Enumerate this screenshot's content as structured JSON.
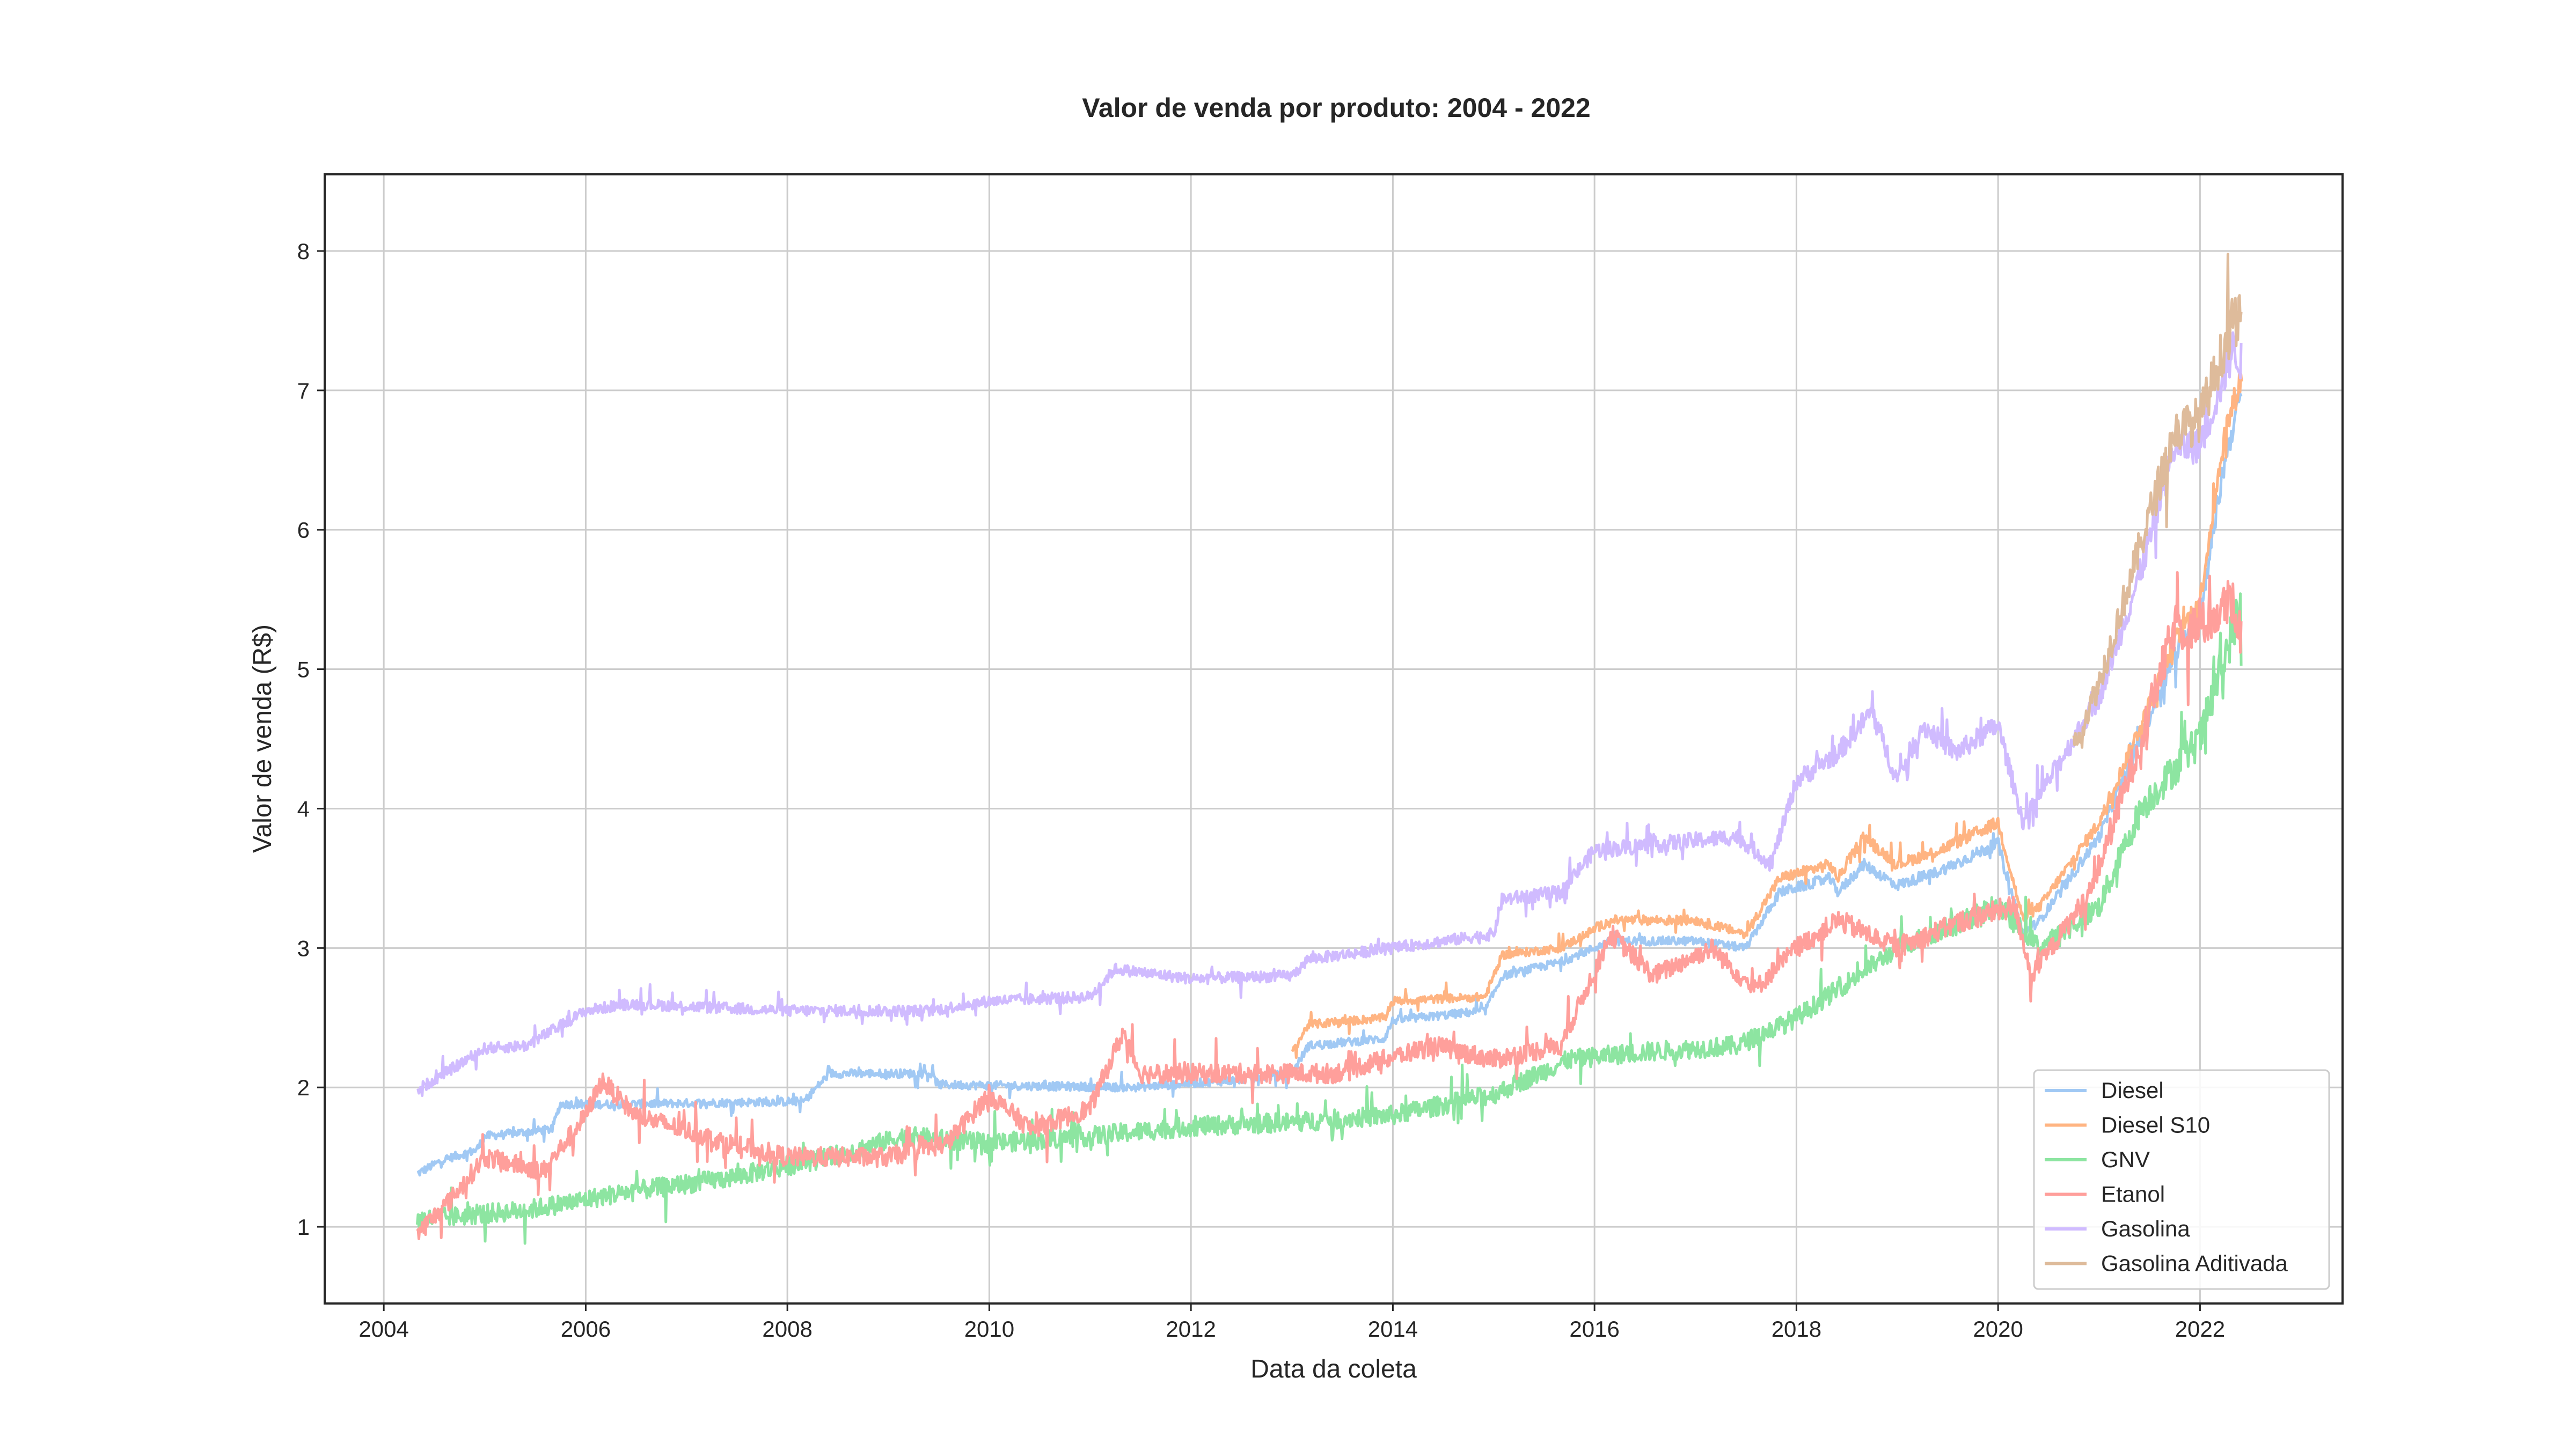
{
  "chart_data": {
    "type": "line",
    "title": "Valor de venda por produto: 2004 - 2022",
    "xlabel": "Data da coleta",
    "ylabel": "Valor de venda (R$)",
    "x_ticks": [
      "2004",
      "2006",
      "2008",
      "2010",
      "2012",
      "2014",
      "2016",
      "2018",
      "2020",
      "2022"
    ],
    "y_ticks": [
      "1",
      "2",
      "3",
      "4",
      "5",
      "6",
      "7",
      "8"
    ],
    "xlim": [
      "2003-06-01",
      "2023-06-01"
    ],
    "ylim": [
      0.45,
      8.55
    ],
    "grid": true,
    "legend_position": "lower right",
    "series": [
      {
        "name": "Diesel",
        "color": "#a1c9f4",
        "noise": 0.03,
        "points": [
          [
            "2004-05-01",
            1.38
          ],
          [
            "2004-08-01",
            1.48
          ],
          [
            "2004-12-01",
            1.55
          ],
          [
            "2005-01-01",
            1.65
          ],
          [
            "2005-09-01",
            1.7
          ],
          [
            "2005-10-01",
            1.88
          ],
          [
            "2006-06-01",
            1.88
          ],
          [
            "2008-03-01",
            1.9
          ],
          [
            "2008-06-01",
            2.1
          ],
          [
            "2009-06-01",
            2.1
          ],
          [
            "2009-07-01",
            2.02
          ],
          [
            "2011-06-01",
            2.0
          ],
          [
            "2012-06-01",
            2.05
          ],
          [
            "2013-01-01",
            2.1
          ],
          [
            "2013-03-01",
            2.3
          ],
          [
            "2013-12-01",
            2.35
          ],
          [
            "2014-01-01",
            2.48
          ],
          [
            "2014-12-01",
            2.55
          ],
          [
            "2015-02-01",
            2.8
          ],
          [
            "2015-09-01",
            2.9
          ],
          [
            "2016-03-01",
            3.05
          ],
          [
            "2017-01-01",
            3.05
          ],
          [
            "2017-07-01",
            3.0
          ],
          [
            "2017-11-01",
            3.4
          ],
          [
            "2018-05-01",
            3.5
          ],
          [
            "2018-06-01",
            3.4
          ],
          [
            "2018-09-01",
            3.6
          ],
          [
            "2019-01-01",
            3.45
          ],
          [
            "2019-06-01",
            3.55
          ],
          [
            "2020-01-01",
            3.75
          ],
          [
            "2020-04-01",
            3.1
          ],
          [
            "2020-06-01",
            3.2
          ],
          [
            "2021-01-01",
            3.8
          ],
          [
            "2021-06-01",
            4.5
          ],
          [
            "2021-10-01",
            5.1
          ],
          [
            "2022-01-01",
            5.4
          ],
          [
            "2022-04-01",
            6.5
          ],
          [
            "2022-06-01",
            7.0
          ]
        ]
      },
      {
        "name": "Diesel S10",
        "color": "#ffb482",
        "noise": 0.03,
        "points": [
          [
            "2013-01-01",
            2.25
          ],
          [
            "2013-03-01",
            2.45
          ],
          [
            "2013-12-01",
            2.5
          ],
          [
            "2014-01-01",
            2.62
          ],
          [
            "2014-12-01",
            2.65
          ],
          [
            "2015-02-01",
            2.95
          ],
          [
            "2015-09-01",
            3.0
          ],
          [
            "2016-03-01",
            3.2
          ],
          [
            "2017-01-01",
            3.2
          ],
          [
            "2017-07-01",
            3.1
          ],
          [
            "2017-11-01",
            3.5
          ],
          [
            "2018-05-01",
            3.6
          ],
          [
            "2018-06-01",
            3.5
          ],
          [
            "2018-09-01",
            3.8
          ],
          [
            "2019-01-01",
            3.6
          ],
          [
            "2019-06-01",
            3.7
          ],
          [
            "2020-01-01",
            3.9
          ],
          [
            "2020-04-01",
            3.2
          ],
          [
            "2020-06-01",
            3.3
          ],
          [
            "2021-01-01",
            3.9
          ],
          [
            "2021-06-01",
            4.6
          ],
          [
            "2021-10-01",
            5.2
          ],
          [
            "2022-01-01",
            5.5
          ],
          [
            "2022-04-01",
            6.7
          ],
          [
            "2022-06-01",
            7.1
          ]
        ]
      },
      {
        "name": "GNV",
        "color": "#8de5a1",
        "noise": 0.07,
        "points": [
          [
            "2004-05-01",
            1.05
          ],
          [
            "2005-06-01",
            1.12
          ],
          [
            "2006-06-01",
            1.25
          ],
          [
            "2007-06-01",
            1.35
          ],
          [
            "2008-06-01",
            1.5
          ],
          [
            "2009-03-01",
            1.65
          ],
          [
            "2010-01-01",
            1.6
          ],
          [
            "2011-01-01",
            1.65
          ],
          [
            "2012-01-01",
            1.72
          ],
          [
            "2013-01-01",
            1.75
          ],
          [
            "2014-01-01",
            1.8
          ],
          [
            "2015-01-01",
            1.95
          ],
          [
            "2015-10-01",
            2.2
          ],
          [
            "2016-06-01",
            2.25
          ],
          [
            "2017-06-01",
            2.3
          ],
          [
            "2018-01-01",
            2.5
          ],
          [
            "2019-01-01",
            3.0
          ],
          [
            "2020-01-01",
            3.3
          ],
          [
            "2020-06-01",
            3.0
          ],
          [
            "2021-01-01",
            3.3
          ],
          [
            "2021-06-01",
            4.0
          ],
          [
            "2022-01-01",
            4.5
          ],
          [
            "2022-06-01",
            5.5
          ]
        ]
      },
      {
        "name": "Etanol",
        "color": "#ff9f9b",
        "noise": 0.07,
        "points": [
          [
            "2004-05-01",
            0.95
          ],
          [
            "2004-09-01",
            1.2
          ],
          [
            "2005-01-01",
            1.5
          ],
          [
            "2005-08-01",
            1.4
          ],
          [
            "2006-01-01",
            1.8
          ],
          [
            "2006-03-01",
            2.05
          ],
          [
            "2006-07-01",
            1.8
          ],
          [
            "2007-06-01",
            1.6
          ],
          [
            "2008-01-01",
            1.5
          ],
          [
            "2009-01-01",
            1.5
          ],
          [
            "2009-08-01",
            1.6
          ],
          [
            "2010-01-01",
            1.95
          ],
          [
            "2010-06-01",
            1.7
          ],
          [
            "2011-01-01",
            1.85
          ],
          [
            "2011-05-01",
            2.4
          ],
          [
            "2011-07-01",
            2.1
          ],
          [
            "2012-06-01",
            2.1
          ],
          [
            "2013-06-01",
            2.1
          ],
          [
            "2014-06-01",
            2.3
          ],
          [
            "2015-01-01",
            2.2
          ],
          [
            "2015-09-01",
            2.3
          ],
          [
            "2016-03-01",
            3.1
          ],
          [
            "2016-08-01",
            2.8
          ],
          [
            "2017-03-01",
            3.0
          ],
          [
            "2017-08-01",
            2.7
          ],
          [
            "2018-01-01",
            3.0
          ],
          [
            "2018-06-01",
            3.2
          ],
          [
            "2019-01-01",
            3.0
          ],
          [
            "2019-09-01",
            3.2
          ],
          [
            "2020-03-01",
            3.3
          ],
          [
            "2020-05-01",
            2.8
          ],
          [
            "2020-12-01",
            3.4
          ],
          [
            "2021-06-01",
            4.5
          ],
          [
            "2021-10-01",
            5.3
          ],
          [
            "2022-01-01",
            5.3
          ],
          [
            "2022-05-01",
            5.5
          ],
          [
            "2022-06-01",
            5.2
          ]
        ]
      },
      {
        "name": "Gasolina",
        "color": "#d0bbff",
        "noise": 0.04,
        "points": [
          [
            "2004-05-01",
            1.98
          ],
          [
            "2005-01-01",
            2.28
          ],
          [
            "2005-06-01",
            2.3
          ],
          [
            "2006-01-01",
            2.55
          ],
          [
            "2006-06-01",
            2.6
          ],
          [
            "2008-01-01",
            2.55
          ],
          [
            "2009-06-01",
            2.55
          ],
          [
            "2010-01-01",
            2.62
          ],
          [
            "2011-01-01",
            2.65
          ],
          [
            "2011-04-01",
            2.85
          ],
          [
            "2012-01-01",
            2.78
          ],
          [
            "2013-01-01",
            2.8
          ],
          [
            "2013-03-01",
            2.92
          ],
          [
            "2014-01-01",
            3.0
          ],
          [
            "2015-01-01",
            3.1
          ],
          [
            "2015-02-01",
            3.35
          ],
          [
            "2015-09-01",
            3.4
          ],
          [
            "2016-01-01",
            3.7
          ],
          [
            "2017-06-01",
            3.8
          ],
          [
            "2017-10-01",
            3.6
          ],
          [
            "2018-01-01",
            4.2
          ],
          [
            "2018-06-01",
            4.4
          ],
          [
            "2018-10-01",
            4.7
          ],
          [
            "2019-01-01",
            4.2
          ],
          [
            "2019-04-01",
            4.6
          ],
          [
            "2019-08-01",
            4.4
          ],
          [
            "2020-01-01",
            4.6
          ],
          [
            "2020-04-01",
            3.9
          ],
          [
            "2020-07-01",
            4.2
          ],
          [
            "2021-01-01",
            4.8
          ],
          [
            "2021-06-01",
            5.7
          ],
          [
            "2021-10-01",
            6.6
          ],
          [
            "2022-01-01",
            6.6
          ],
          [
            "2022-05-01",
            7.3
          ],
          [
            "2022-06-01",
            7.2
          ]
        ]
      },
      {
        "name": "Gasolina Aditivada",
        "color": "#debb9b",
        "noise": 0.05,
        "points": [
          [
            "2020-10-01",
            4.45
          ],
          [
            "2021-01-01",
            4.9
          ],
          [
            "2021-06-01",
            5.9
          ],
          [
            "2021-10-01",
            6.7
          ],
          [
            "2022-01-01",
            6.8
          ],
          [
            "2022-05-01",
            7.5
          ],
          [
            "2022-06-01",
            7.5
          ]
        ]
      }
    ]
  }
}
